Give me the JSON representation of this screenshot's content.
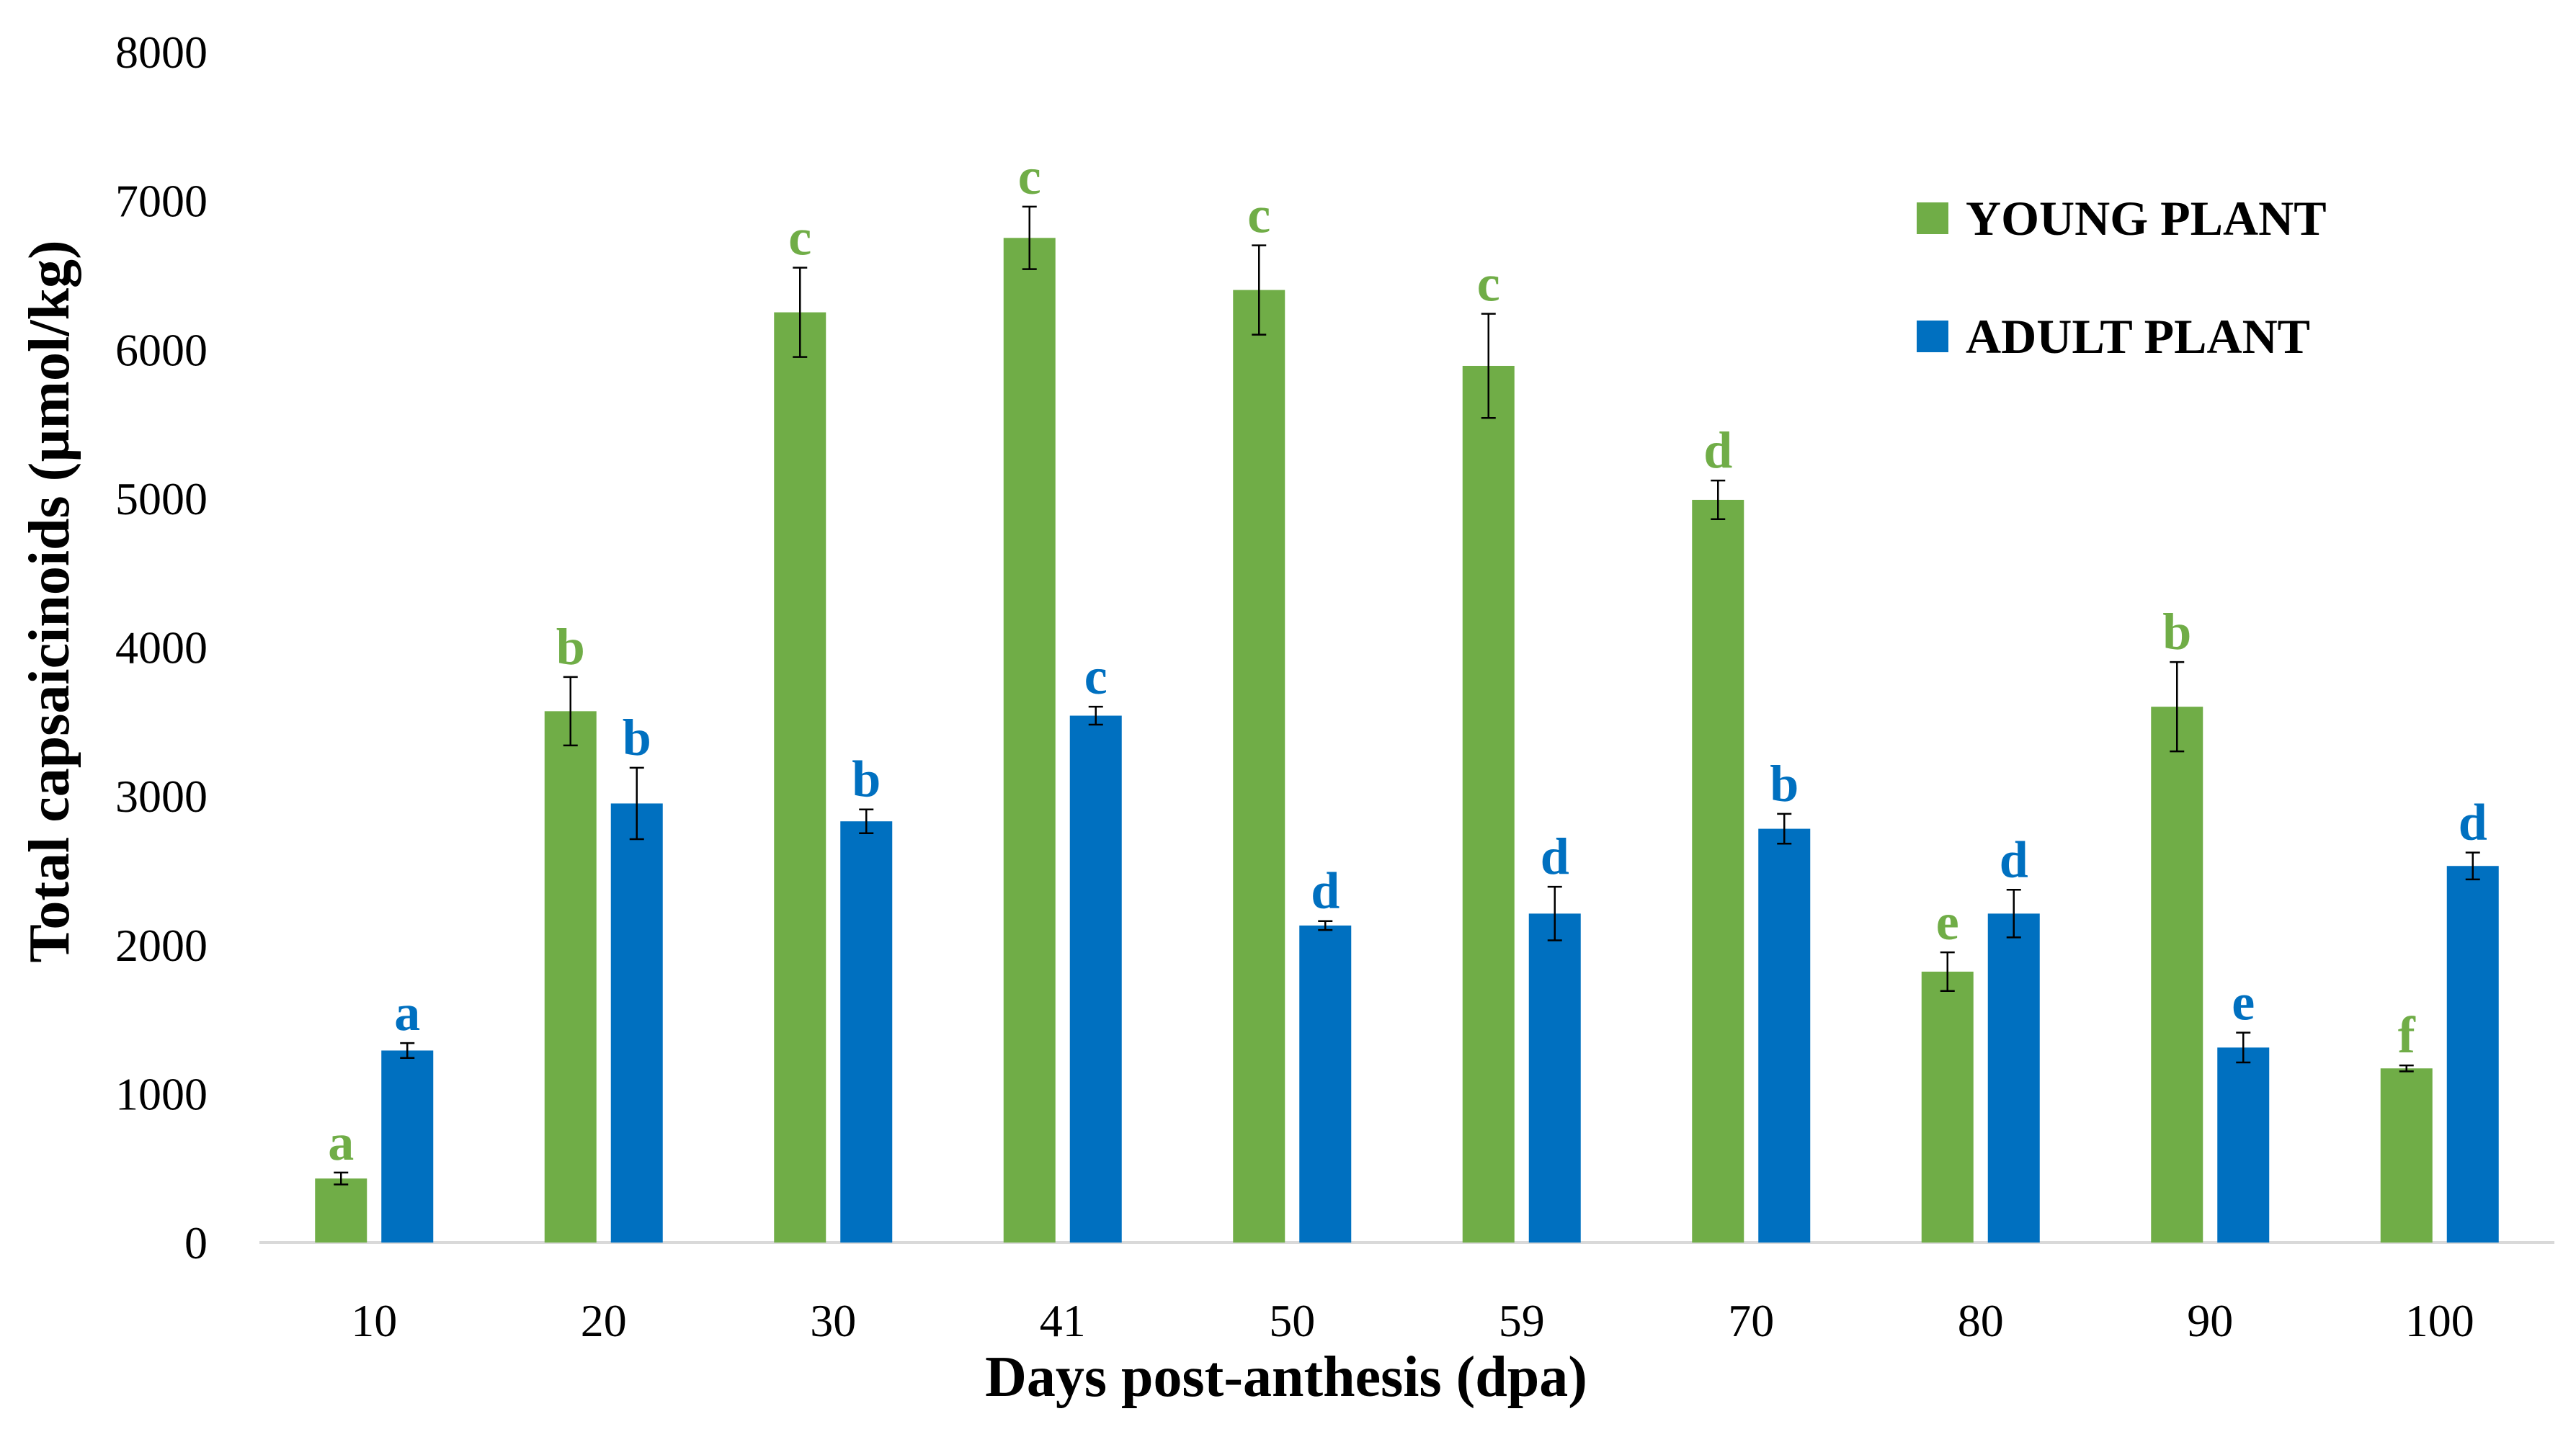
{
  "chart_data": {
    "type": "bar",
    "title": "",
    "xlabel": "Days post-anthesis (dpa)",
    "ylabel": "Total capsaicinoids (µmol/kg)",
    "ylim": [
      0,
      8000
    ],
    "yticks": [
      "0",
      "1000",
      "2000",
      "3000",
      "4000",
      "5000",
      "6000",
      "7000",
      "8000"
    ],
    "grid": false,
    "legend_position": "top-right",
    "categories": [
      "10",
      "20",
      "30",
      "41",
      "50",
      "59",
      "70",
      "80",
      "90",
      "100"
    ],
    "series": [
      {
        "name": "YOUNG PLANT",
        "color": "#70AD47",
        "values": [
          430,
          3570,
          6250,
          6750,
          6400,
          5890,
          4990,
          1820,
          3600,
          1170
        ],
        "errors": [
          40,
          230,
          300,
          210,
          300,
          350,
          130,
          130,
          300,
          20
        ],
        "letters": [
          "a",
          "b",
          "c",
          "c",
          "c",
          "c",
          "d",
          "e",
          "b",
          "f"
        ]
      },
      {
        "name": "ADULT PLANT",
        "color": "#0070C0",
        "values": [
          1290,
          2950,
          2830,
          3540,
          2130,
          2210,
          2780,
          2210,
          1310,
          2530
        ],
        "errors": [
          50,
          240,
          80,
          60,
          30,
          180,
          100,
          160,
          100,
          90
        ],
        "letters": [
          "a",
          "b",
          "b",
          "c",
          "d",
          "d",
          "b",
          "d",
          "e",
          "d"
        ]
      }
    ]
  }
}
